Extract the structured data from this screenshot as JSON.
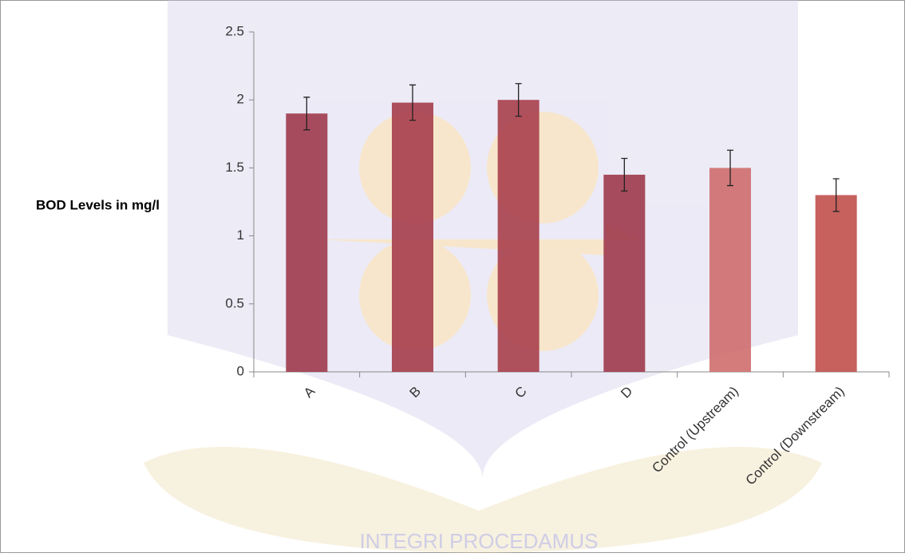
{
  "chart_data": {
    "type": "bar",
    "ylabel": "BOD Levels in mg/l",
    "categories": [
      "A",
      "B",
      "C",
      "D",
      "Control (Upstream)",
      "Control (Downstream)"
    ],
    "values": [
      1.9,
      1.98,
      2.0,
      1.45,
      1.5,
      1.3
    ],
    "errors": [
      0.12,
      0.13,
      0.12,
      0.12,
      0.13,
      0.12
    ],
    "colors": [
      "#9e3a4c",
      "#a63d4c",
      "#a83f4c",
      "#9e3a4c",
      "#cf6e6e",
      "#c0504d"
    ],
    "ylim": [
      0,
      2.5
    ],
    "yticks": [
      0,
      0.5,
      1,
      {
        "value": 1.5,
        "label": "1.5"
      },
      2,
      2.5
    ],
    "watermark": "INTEGRI PROCEDAMUS"
  }
}
